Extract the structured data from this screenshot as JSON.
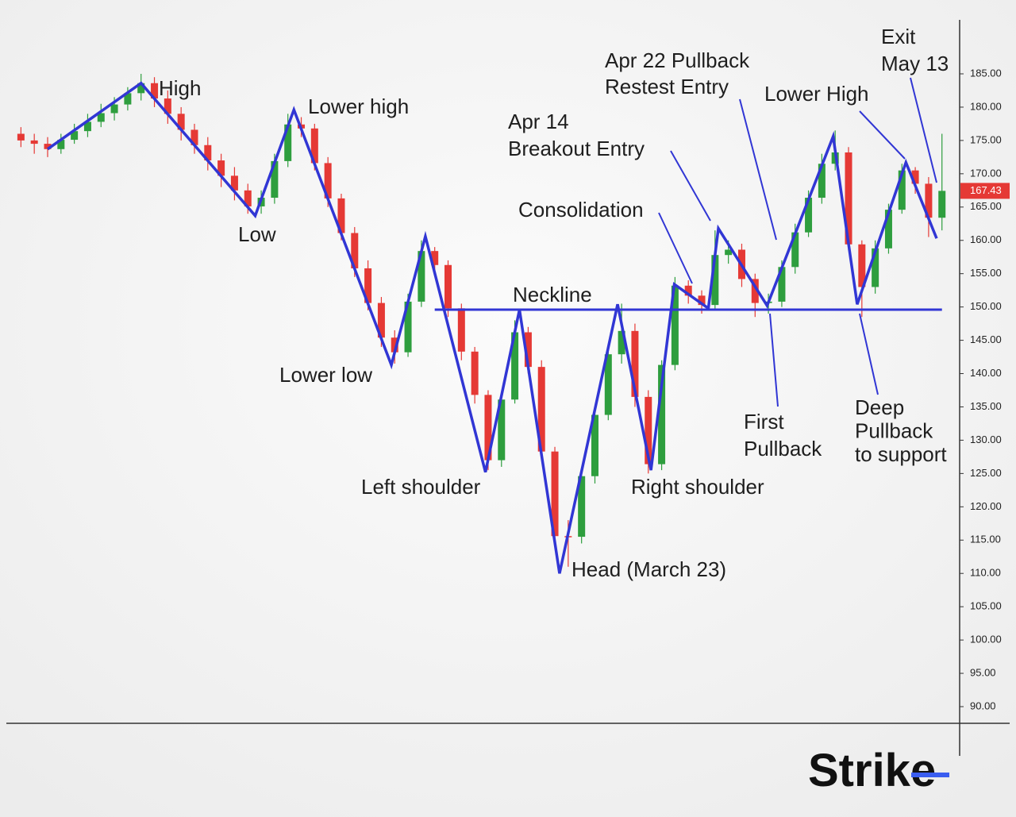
{
  "chart_data": {
    "type": "candlestick",
    "ylim": [
      87.5,
      188.5
    ],
    "xlim": [
      -4,
      142
    ],
    "yticks": [
      {
        "value": 185,
        "label": "185.00"
      },
      {
        "value": 180,
        "label": "180.00"
      },
      {
        "value": 175,
        "label": "175.00"
      },
      {
        "value": 170,
        "label": "170.00"
      },
      {
        "value": 165,
        "label": "165.00"
      },
      {
        "value": 160,
        "label": "160.00"
      },
      {
        "value": 155,
        "label": "155.00"
      },
      {
        "value": 150,
        "label": "150.00"
      },
      {
        "value": 145,
        "label": "145.00"
      },
      {
        "value": 140,
        "label": "140.00"
      },
      {
        "value": 135,
        "label": "135.00"
      },
      {
        "value": 130,
        "label": "130.00"
      },
      {
        "value": 125,
        "label": "125.00"
      },
      {
        "value": 120,
        "label": "120.00"
      },
      {
        "value": 115,
        "label": "115.00"
      },
      {
        "value": 110,
        "label": "110.00"
      },
      {
        "value": 105,
        "label": "105.00"
      },
      {
        "value": 100,
        "label": "100.00"
      },
      {
        "value": 95,
        "label": "95.00"
      },
      {
        "value": 90,
        "label": "90.00"
      }
    ],
    "up_color": "#2e9e3e",
    "down_color": "#e53935",
    "line_color": "#3136d4",
    "price_label": 167.43,
    "candles": {
      "x": [
        1,
        3,
        5,
        7,
        9,
        11,
        13,
        15,
        17,
        19,
        21,
        23,
        25,
        27,
        29,
        31,
        33,
        35,
        37,
        39,
        41,
        43,
        45,
        47,
        49,
        51,
        53,
        55,
        57,
        59,
        61,
        63,
        65,
        67,
        69,
        71,
        73,
        75,
        77,
        79,
        81,
        83,
        85,
        87,
        89,
        91,
        93,
        95,
        97,
        99,
        101,
        103,
        105,
        107,
        109,
        111,
        113,
        115,
        117,
        119,
        121,
        123,
        125,
        127,
        129,
        131,
        133,
        135,
        137,
        139
      ],
      "open": [
        176,
        175,
        174.5,
        173.7,
        175.1,
        176.4,
        177.8,
        179.1,
        180.4,
        182.1,
        183.6,
        181.3,
        179,
        176.6,
        174.3,
        172,
        169.7,
        167.5,
        165.1,
        166.4,
        171.9,
        177.4,
        176.8,
        171.6,
        166.3,
        161.1,
        155.8,
        150.6,
        145.4,
        143.2,
        150.8,
        158.4,
        156.3,
        149.8,
        143.3,
        136.8,
        127,
        136.1,
        146.2,
        141,
        128.3,
        115.6,
        115.5,
        124.6,
        133.8,
        142.9,
        146.4,
        136.5,
        126.4,
        141.3,
        153.2,
        151.7,
        150.3,
        157.8,
        158.6,
        154.2,
        150.6,
        150.8,
        156,
        161.2,
        166.4,
        171.5,
        173.2,
        159.4,
        153,
        158.8,
        164.6,
        170.5,
        168.5,
        163.4
      ],
      "high": [
        177,
        176,
        175.5,
        176,
        177.5,
        179,
        180.5,
        181.5,
        183,
        185,
        184.5,
        182.5,
        180,
        177.5,
        175.5,
        173,
        171,
        168.5,
        167.5,
        173,
        179,
        178.5,
        177.5,
        172.5,
        167,
        162,
        157,
        151.5,
        146.5,
        152,
        160,
        159,
        157,
        150.5,
        144,
        137.5,
        137,
        148,
        147,
        142,
        129,
        118,
        126,
        135,
        144,
        150.5,
        147.5,
        137.5,
        142,
        154.5,
        154,
        152.5,
        161.5,
        160,
        159.5,
        155,
        152,
        157,
        162.5,
        167.5,
        173,
        176.5,
        174,
        160,
        160,
        165.5,
        171.5,
        171,
        169.5,
        176
      ],
      "low": [
        174,
        173,
        172.5,
        173,
        174.5,
        175.5,
        177,
        178,
        179.5,
        181,
        180,
        177.5,
        175,
        173,
        170.5,
        168,
        166,
        164,
        164,
        165.5,
        171,
        175.5,
        170.5,
        165,
        160,
        154.5,
        149.5,
        144,
        141.5,
        142.5,
        150,
        155,
        148.5,
        142,
        135.5,
        125.5,
        126,
        135.5,
        140,
        127,
        114,
        111,
        114.5,
        123.5,
        133,
        141.5,
        135,
        125,
        125.5,
        140.5,
        150.5,
        149,
        149.5,
        156.5,
        153,
        148.5,
        149,
        150,
        155,
        160.5,
        165.5,
        170.5,
        158.5,
        148.5,
        152,
        158,
        164,
        167,
        160.5,
        161.5
      ],
      "close": [
        175,
        174.5,
        173.7,
        175.1,
        176.4,
        177.8,
        179.1,
        180.4,
        182.1,
        183.6,
        181.3,
        179,
        176.6,
        174.3,
        172,
        169.7,
        167.5,
        165.1,
        166.4,
        171.9,
        177.4,
        176.8,
        171.6,
        166.3,
        161.1,
        155.8,
        150.6,
        145.4,
        143.2,
        150.8,
        158.4,
        156.3,
        149.8,
        143.3,
        136.8,
        127,
        136.1,
        146.2,
        141,
        128.3,
        115.6,
        115.5,
        124.6,
        133.8,
        142.9,
        146.4,
        136.5,
        126.4,
        141.3,
        153.2,
        151.7,
        150.3,
        157.8,
        158.6,
        154.2,
        150.6,
        150.8,
        156,
        161.2,
        166.4,
        171.5,
        173.2,
        159.4,
        153,
        158.8,
        164.6,
        170.5,
        168.5,
        163.4,
        167.43
      ]
    },
    "zigzag": {
      "x": [
        5,
        19,
        36.1,
        41.9,
        56.5,
        61.6,
        70.6,
        75.7,
        81.7,
        90.4,
        95.4,
        98.9,
        104,
        105.5,
        112.8,
        122.7,
        126.3,
        133.6,
        138.2
      ],
      "y": [
        173.7,
        183.6,
        163.7,
        179.6,
        141.3,
        160.6,
        125.2,
        149.6,
        110,
        150.4,
        125.5,
        153.4,
        149.8,
        161.8,
        150.2,
        175.6,
        150.4,
        171.7,
        160.3
      ]
    },
    "neckline": {
      "value": 149.6,
      "x": [
        63,
        139
      ]
    },
    "annotations": [
      {
        "lines": [
          "High"
        ]
      },
      {
        "lines": [
          "Low"
        ]
      },
      {
        "lines": [
          "Lower high"
        ]
      },
      {
        "lines": [
          "Lower low"
        ]
      },
      {
        "lines": [
          "Left shoulder"
        ]
      },
      {
        "lines": [
          "Neckline"
        ]
      },
      {
        "lines": [
          "Head (March 23)"
        ]
      },
      {
        "lines": [
          "Right shoulder"
        ]
      },
      {
        "lines": [
          "Consolidation"
        ]
      },
      {
        "lines": [
          "Apr 14",
          "Breakout Entry"
        ]
      },
      {
        "lines": [
          "Apr 22 Pullback",
          "Restest Entry"
        ]
      },
      {
        "lines": [
          "Lower High"
        ]
      },
      {
        "lines": [
          "Exit",
          "May 13"
        ]
      },
      {
        "lines": [
          "First",
          "Pullback"
        ]
      },
      {
        "lines": [
          "Deep",
          "Pullback",
          "to support"
        ]
      }
    ],
    "brand": "Strike"
  }
}
